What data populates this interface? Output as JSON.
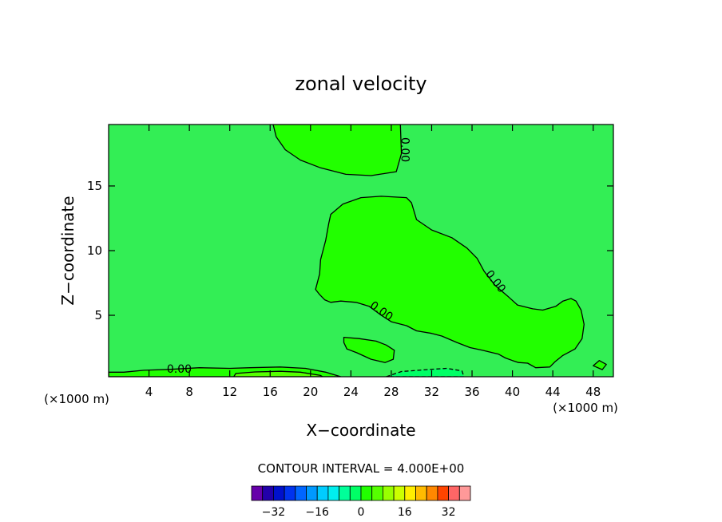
{
  "chart_data": {
    "type": "heatmap",
    "title": "zonal velocity",
    "xlabel": "X−coordinate",
    "ylabel": "Z−coordinate",
    "x_unit_left": "(×1000 m)",
    "x_unit_right": "(×1000 m)",
    "xlim": [
      0,
      50
    ],
    "ylim": [
      0.25,
      19.75
    ],
    "x_ticks": [
      4,
      8,
      12,
      16,
      20,
      24,
      28,
      32,
      36,
      40,
      44,
      48
    ],
    "y_ticks": [
      5,
      10,
      15
    ],
    "background_value": 0,
    "contour_interval_label": "CONTOUR INTERVAL = 4.000E+00",
    "contour_labels": [
      {
        "text": "0.00",
        "x": 29.3,
        "y": 17.8,
        "angle": 90
      },
      {
        "text": "0.00",
        "x": 38.3,
        "y": 7.6,
        "angle": 52
      },
      {
        "text": "0.00",
        "x": 27.0,
        "y": 5.3,
        "angle": 35
      },
      {
        "text": "0.00",
        "x": 7.0,
        "y": 0.8,
        "angle": 0
      }
    ],
    "regions": [
      {
        "value": 4,
        "color": "#22ff00",
        "points": [
          [
            16.3,
            19.75
          ],
          [
            16.6,
            18.8
          ],
          [
            17.5,
            17.8
          ],
          [
            19.0,
            17.0
          ],
          [
            21.0,
            16.4
          ],
          [
            23.5,
            15.9
          ],
          [
            26.0,
            15.8
          ],
          [
            28.5,
            16.1
          ],
          [
            29.0,
            17.5
          ],
          [
            28.9,
            19.75
          ]
        ]
      },
      {
        "value": 4,
        "color": "#22ff00",
        "points": [
          [
            20.5,
            7.0
          ],
          [
            20.9,
            8.2
          ],
          [
            21.0,
            9.3
          ],
          [
            21.5,
            10.8
          ],
          [
            21.8,
            12.1
          ],
          [
            22.0,
            12.8
          ],
          [
            23.2,
            13.6
          ],
          [
            25.0,
            14.1
          ],
          [
            27.0,
            14.2
          ],
          [
            29.5,
            14.1
          ],
          [
            30.0,
            13.7
          ],
          [
            30.5,
            12.4
          ],
          [
            32.0,
            11.6
          ],
          [
            34.0,
            11.0
          ],
          [
            35.5,
            10.2
          ],
          [
            36.5,
            9.4
          ],
          [
            37.2,
            8.4
          ],
          [
            38.3,
            7.3
          ],
          [
            39.5,
            6.5
          ],
          [
            40.5,
            5.8
          ],
          [
            42.0,
            5.5
          ],
          [
            43.0,
            5.4
          ],
          [
            44.3,
            5.7
          ],
          [
            45.0,
            6.1
          ],
          [
            45.8,
            6.3
          ],
          [
            46.3,
            6.1
          ],
          [
            46.8,
            5.4
          ],
          [
            47.1,
            4.3
          ],
          [
            46.9,
            3.2
          ],
          [
            46.2,
            2.4
          ],
          [
            45.0,
            1.9
          ],
          [
            44.2,
            1.4
          ],
          [
            43.7,
            1.0
          ],
          [
            42.3,
            0.95
          ],
          [
            41.5,
            1.3
          ],
          [
            40.6,
            1.35
          ],
          [
            40.0,
            1.5
          ],
          [
            39.3,
            1.7
          ],
          [
            38.6,
            2.0
          ],
          [
            37.0,
            2.3
          ],
          [
            35.8,
            2.5
          ],
          [
            34.5,
            2.9
          ],
          [
            33.0,
            3.4
          ],
          [
            32.0,
            3.6
          ],
          [
            30.5,
            3.8
          ],
          [
            29.5,
            4.2
          ],
          [
            28.0,
            4.5
          ],
          [
            27.0,
            5.0
          ],
          [
            25.8,
            5.7
          ],
          [
            24.5,
            6.0
          ],
          [
            23.0,
            6.1
          ],
          [
            22.0,
            6.0
          ],
          [
            21.4,
            6.2
          ],
          [
            20.9,
            6.6
          ]
        ]
      },
      {
        "value": 4,
        "color": "#22ff00",
        "points": [
          [
            23.3,
            3.3
          ],
          [
            24.8,
            3.2
          ],
          [
            26.5,
            3.0
          ],
          [
            27.5,
            2.7
          ],
          [
            28.3,
            2.3
          ],
          [
            28.2,
            1.6
          ],
          [
            27.4,
            1.35
          ],
          [
            26.0,
            1.6
          ],
          [
            24.6,
            2.1
          ],
          [
            23.6,
            2.4
          ],
          [
            23.3,
            2.9
          ]
        ]
      },
      {
        "value": 4,
        "color": "#22ff00",
        "points": [
          [
            0,
            0.25
          ],
          [
            0,
            0.6
          ],
          [
            1.5,
            0.6
          ],
          [
            3.5,
            0.75
          ],
          [
            6.0,
            0.82
          ],
          [
            9.0,
            0.95
          ],
          [
            12.0,
            0.9
          ],
          [
            14.0,
            0.95
          ],
          [
            17.0,
            1.0
          ],
          [
            19.5,
            0.9
          ],
          [
            21.5,
            0.6
          ],
          [
            23.0,
            0.25
          ]
        ]
      },
      {
        "value": 8,
        "color": "#55ff00",
        "points": [
          [
            12.4,
            0.25
          ],
          [
            12.6,
            0.5
          ],
          [
            14.5,
            0.62
          ],
          [
            17.0,
            0.67
          ],
          [
            19.0,
            0.6
          ],
          [
            21.0,
            0.35
          ],
          [
            21.2,
            0.25
          ]
        ]
      },
      {
        "value": -4,
        "color": "#00ff66",
        "points": [
          [
            27.5,
            0.25
          ],
          [
            29.0,
            0.65
          ],
          [
            31.5,
            0.8
          ],
          [
            33.5,
            0.9
          ],
          [
            35.0,
            0.7
          ],
          [
            35.2,
            0.25
          ]
        ]
      },
      {
        "value": 4,
        "color": "#22ff00",
        "points": [
          [
            48.0,
            1.1
          ],
          [
            48.6,
            1.5
          ],
          [
            49.3,
            1.2
          ],
          [
            48.9,
            0.8
          ]
        ]
      }
    ],
    "colorbar": {
      "tick_labels": [
        "−32",
        "−16",
        "0",
        "16",
        "32"
      ],
      "tick_values": [
        -32,
        -16,
        0,
        16,
        32
      ],
      "bins": [
        {
          "lo": -40,
          "hi": -36,
          "color": "#6600aa"
        },
        {
          "lo": -36,
          "hi": -32,
          "color": "#2200aa"
        },
        {
          "lo": -32,
          "hi": -28,
          "color": "#0011cc"
        },
        {
          "lo": -28,
          "hi": -24,
          "color": "#0033ee"
        },
        {
          "lo": -24,
          "hi": -20,
          "color": "#0066ff"
        },
        {
          "lo": -20,
          "hi": -16,
          "color": "#0099ff"
        },
        {
          "lo": -16,
          "hi": -12,
          "color": "#00ccff"
        },
        {
          "lo": -12,
          "hi": -8,
          "color": "#00eeee"
        },
        {
          "lo": -8,
          "hi": -4,
          "color": "#00ff99"
        },
        {
          "lo": -4,
          "hi": 0,
          "color": "#00ff66"
        },
        {
          "lo": 0,
          "hi": 4,
          "color": "#22ff00"
        },
        {
          "lo": 4,
          "hi": 8,
          "color": "#55ff00"
        },
        {
          "lo": 8,
          "hi": 12,
          "color": "#99ff00"
        },
        {
          "lo": 12,
          "hi": 16,
          "color": "#ccff00"
        },
        {
          "lo": 16,
          "hi": 20,
          "color": "#ffee00"
        },
        {
          "lo": 20,
          "hi": 24,
          "color": "#ffbb00"
        },
        {
          "lo": 24,
          "hi": 28,
          "color": "#ff8800"
        },
        {
          "lo": 28,
          "hi": 32,
          "color": "#ff4400"
        },
        {
          "lo": 32,
          "hi": 36,
          "color": "#ff6666"
        },
        {
          "lo": 36,
          "hi": 40,
          "color": "#ff9999"
        }
      ]
    },
    "colors": {
      "background_field": "#33ee55",
      "contour_line": "#000000"
    }
  }
}
